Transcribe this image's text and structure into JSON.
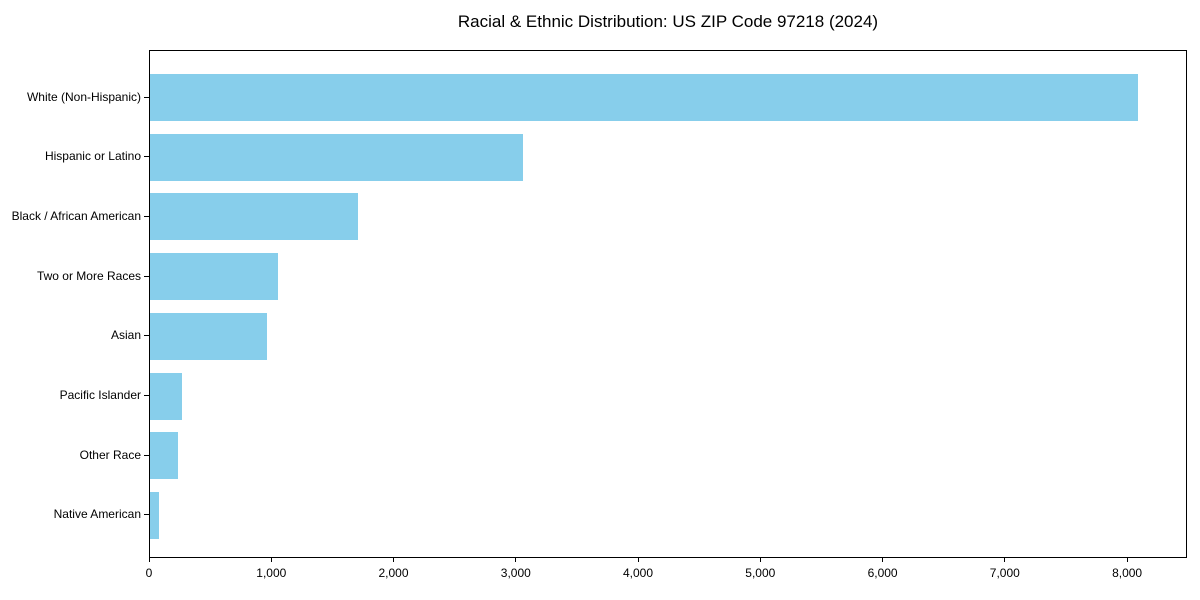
{
  "figure": {
    "title": "Racial & Ethnic Distribution: US ZIP Code 97218 (2024)"
  },
  "chart_data": {
    "type": "bar",
    "orientation": "horizontal",
    "title": "Racial & Ethnic Distribution: US ZIP Code 97218 (2024)",
    "categories": [
      "White (Non-Hispanic)",
      "Hispanic or Latino",
      "Black / African American",
      "Two or More Races",
      "Asian",
      "Pacific Islander",
      "Other Race",
      "Native American"
    ],
    "values": [
      8080,
      3050,
      1700,
      1050,
      960,
      260,
      230,
      70
    ],
    "xlabel": "",
    "ylabel": "",
    "xlim": [
      0,
      8490
    ],
    "xticks": [
      0,
      1000,
      2000,
      3000,
      4000,
      5000,
      6000,
      7000,
      8000
    ],
    "xtick_labels": [
      "0",
      "1,000",
      "2,000",
      "3,000",
      "4,000",
      "5,000",
      "6,000",
      "7,000",
      "8,000"
    ],
    "bar_color": "#87CEEB",
    "axis_color": "#000000",
    "background_color": "#ffffff",
    "grid": false,
    "legend": null
  }
}
